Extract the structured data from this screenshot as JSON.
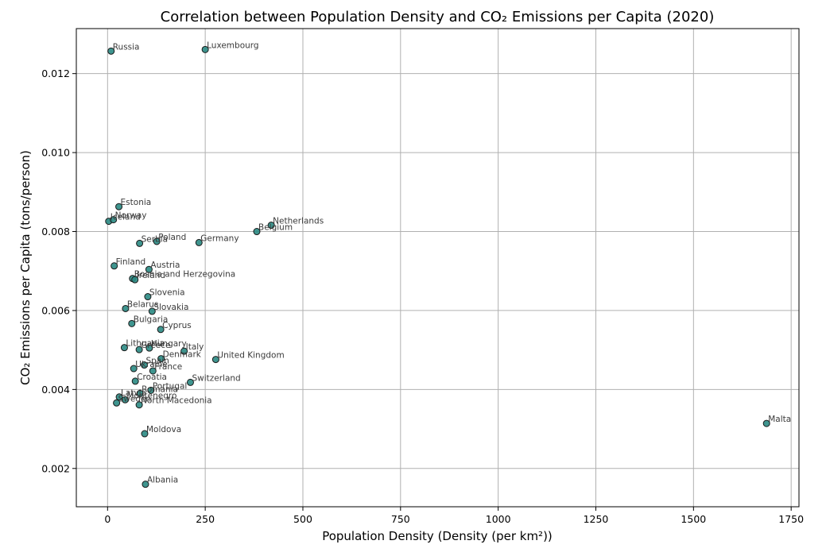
{
  "chart_data": {
    "type": "scatter",
    "title": "Correlation between Population Density and CO₂ Emissions per Capita (2020)",
    "xlabel": "Population Density (Density (per km²))",
    "ylabel": "CO₂ Emissions per Capita (tons/person)",
    "xlim": [
      -80,
      1770
    ],
    "ylim": [
      0.00103,
      0.01314
    ],
    "xticks": [
      0,
      250,
      500,
      750,
      1000,
      1250,
      1500,
      1750
    ],
    "xtick_labels": [
      "0",
      "250",
      "500",
      "750",
      "1000",
      "1250",
      "1500",
      "1750"
    ],
    "yticks": [
      0.002,
      0.004,
      0.006,
      0.008,
      0.01,
      0.012
    ],
    "ytick_labels": [
      "0.002",
      "0.004",
      "0.006",
      "0.008",
      "0.010",
      "0.012"
    ],
    "grid": true,
    "points": [
      {
        "label": "Russia",
        "x": 9,
        "y": 0.01257
      },
      {
        "label": "Luxembourg",
        "x": 250,
        "y": 0.01261
      },
      {
        "label": "Estonia",
        "x": 29,
        "y": 0.00863
      },
      {
        "label": "Iceland",
        "x": 3,
        "y": 0.00826
      },
      {
        "label": "Norway",
        "x": 15,
        "y": 0.0083
      },
      {
        "label": "Netherlands",
        "x": 419,
        "y": 0.00816
      },
      {
        "label": "Belgium",
        "x": 382,
        "y": 0.008
      },
      {
        "label": "Serbia",
        "x": 82,
        "y": 0.0077
      },
      {
        "label": "Poland",
        "x": 126,
        "y": 0.00775
      },
      {
        "label": "Germany",
        "x": 234,
        "y": 0.00772
      },
      {
        "label": "Finland",
        "x": 17,
        "y": 0.00713
      },
      {
        "label": "Austria",
        "x": 106,
        "y": 0.00704
      },
      {
        "label": "Bosnia and Herzegovina",
        "x": 64,
        "y": 0.00681
      },
      {
        "label": "Ireland",
        "x": 70,
        "y": 0.00678
      },
      {
        "label": "Slovenia",
        "x": 103,
        "y": 0.00635
      },
      {
        "label": "Belarus",
        "x": 46,
        "y": 0.00605
      },
      {
        "label": "Slovakia",
        "x": 114,
        "y": 0.00598
      },
      {
        "label": "Bulgaria",
        "x": 62,
        "y": 0.00567
      },
      {
        "label": "Cyprus",
        "x": 136,
        "y": 0.00552
      },
      {
        "label": "Lithuania",
        "x": 43,
        "y": 0.00506
      },
      {
        "label": "Greece",
        "x": 81,
        "y": 0.00501
      },
      {
        "label": "Hungary",
        "x": 107,
        "y": 0.00505
      },
      {
        "label": "Italy",
        "x": 196,
        "y": 0.00497
      },
      {
        "label": "Denmark",
        "x": 137,
        "y": 0.00478
      },
      {
        "label": "United Kingdom",
        "x": 277,
        "y": 0.00476
      },
      {
        "label": "Spain",
        "x": 94,
        "y": 0.00462
      },
      {
        "label": "Ukraine",
        "x": 67,
        "y": 0.00453
      },
      {
        "label": "France",
        "x": 116,
        "y": 0.00447
      },
      {
        "label": "Croatia",
        "x": 71,
        "y": 0.00421
      },
      {
        "label": "Switzerland",
        "x": 212,
        "y": 0.00418
      },
      {
        "label": "Portugal",
        "x": 111,
        "y": 0.00398
      },
      {
        "label": "Romania",
        "x": 83,
        "y": 0.0039
      },
      {
        "label": "Latvia",
        "x": 30,
        "y": 0.00381
      },
      {
        "label": "Montenegro",
        "x": 45,
        "y": 0.00374
      },
      {
        "label": "Sweden",
        "x": 23,
        "y": 0.00366
      },
      {
        "label": "North Macedonia",
        "x": 81,
        "y": 0.00361
      },
      {
        "label": "Malta",
        "x": 1687,
        "y": 0.00314
      },
      {
        "label": "Moldova",
        "x": 95,
        "y": 0.00288
      },
      {
        "label": "Albania",
        "x": 97,
        "y": 0.0016
      }
    ]
  }
}
